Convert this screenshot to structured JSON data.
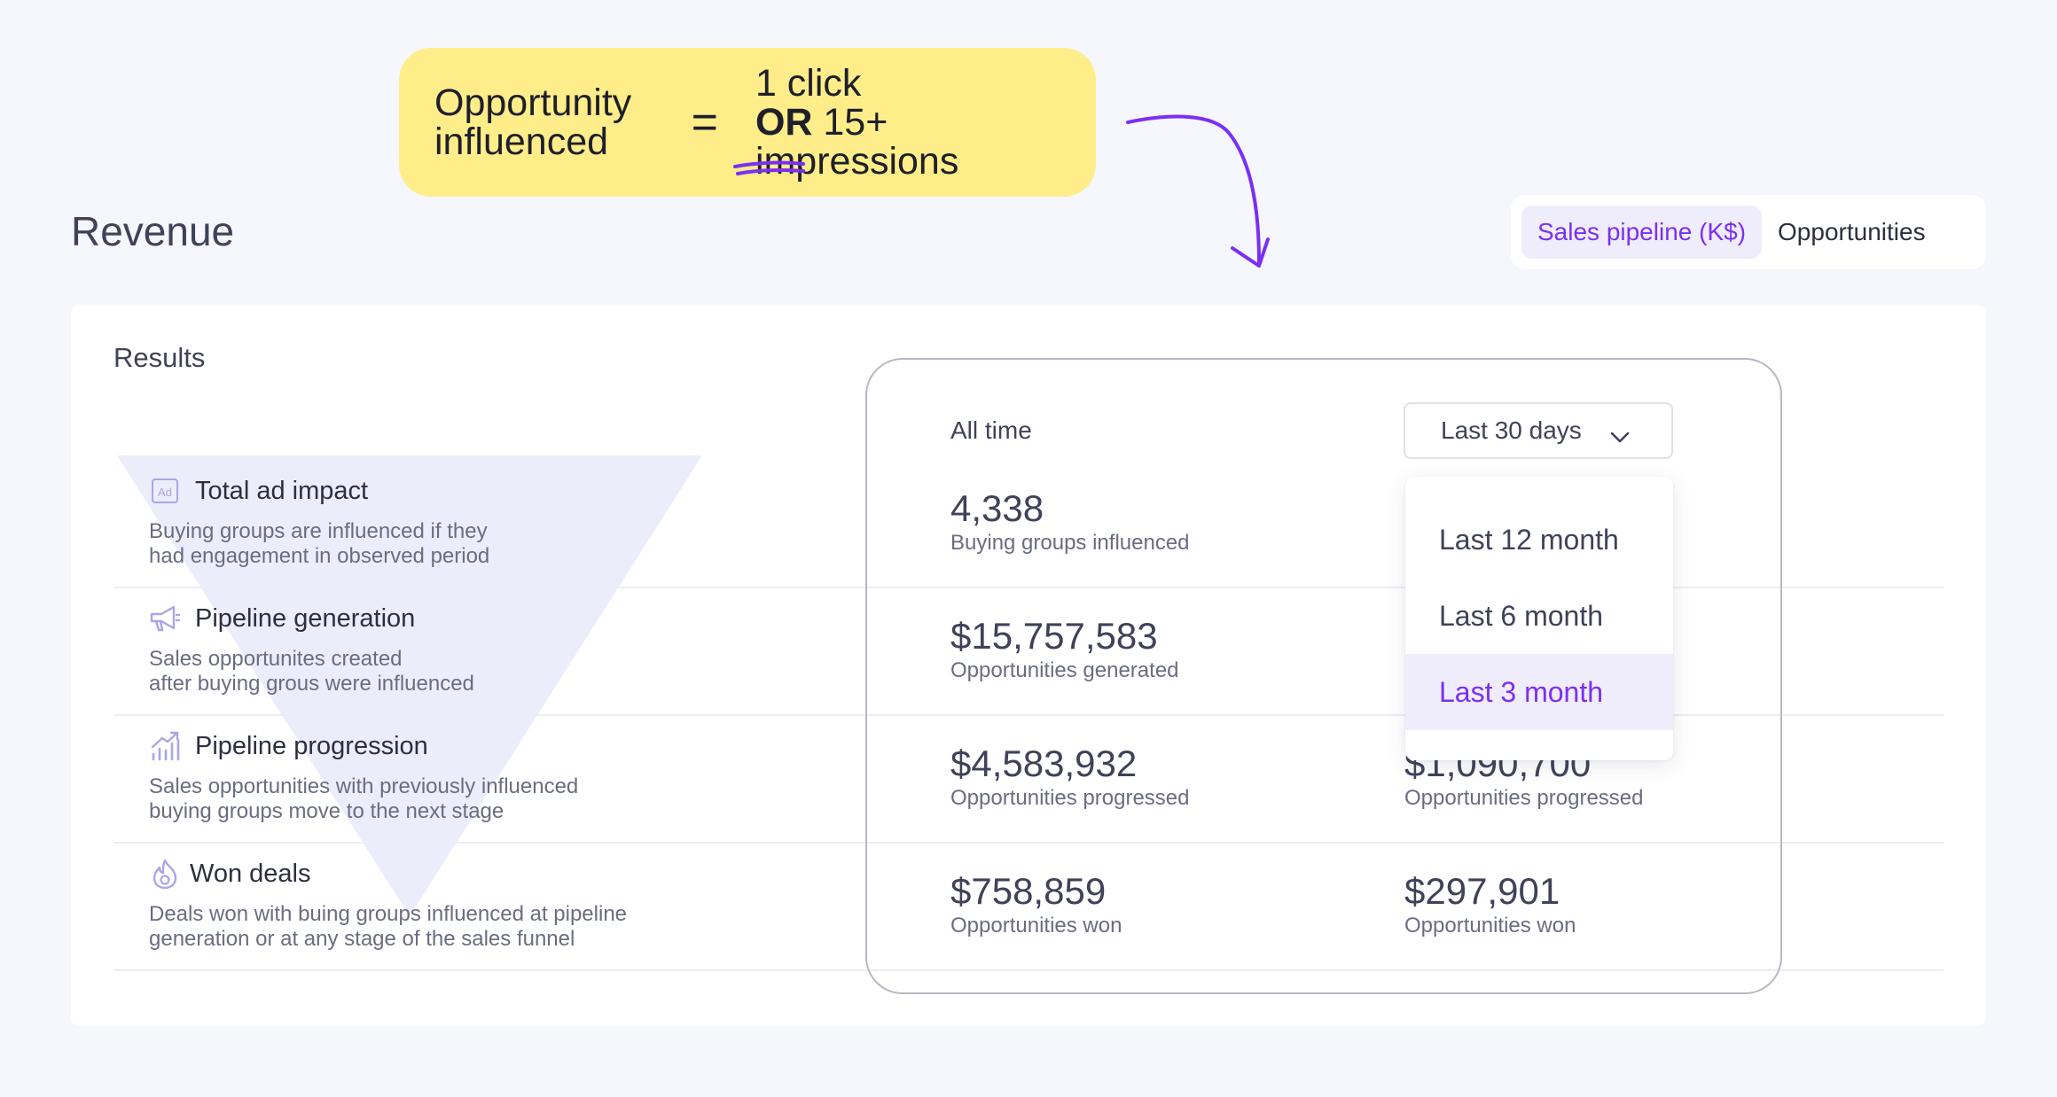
{
  "callout": {
    "lhs_line1": "Opportunity",
    "lhs_line2": "influenced",
    "equals": "=",
    "rhs_line1": "1 click",
    "rhs_or": "OR",
    "rhs_rest": " 15+ impressions"
  },
  "page_title": "Revenue",
  "toggle": {
    "options": [
      "Sales pipeline (K$)",
      "Opportunities"
    ],
    "selected": "Sales pipeline (K$)"
  },
  "results_title": "Results",
  "metrics": [
    {
      "icon": "ad-icon",
      "title": "Total ad impact",
      "desc1": "Buying groups are influenced if they",
      "desc2": "had engagement in observed period"
    },
    {
      "icon": "megaphone-icon",
      "title": "Pipeline generation",
      "desc1": "Sales opportunites created",
      "desc2": "after buying grous were influenced"
    },
    {
      "icon": "growth-chart-icon",
      "title": "Pipeline progression",
      "desc1": "Sales opportunities with previously influenced",
      "desc2": "buying groups move to the next stage"
    },
    {
      "icon": "flame-icon",
      "title": "Won deals",
      "desc1": "Deals won with buing groups influenced at pipeline",
      "desc2": "generation or at any stage of the sales funnel"
    }
  ],
  "columns": {
    "all_time_label": "All time",
    "period_select": "Last 30 days"
  },
  "all_time": [
    {
      "value": "4,338",
      "label": "Buying groups influenced"
    },
    {
      "value": "$15,757,583",
      "label": "Opportunities generated"
    },
    {
      "value": "$4,583,932",
      "label": "Opportunities progressed"
    },
    {
      "value": "$758,859",
      "label": "Opportunities won"
    }
  ],
  "period": [
    {
      "value": "$1,090,700",
      "label": "Opportunities progressed"
    },
    {
      "value": "$297,901",
      "label": "Opportunities won"
    }
  ],
  "dropdown": {
    "options": [
      "Last 12 month",
      "Last 6 month",
      "Last 3 month"
    ],
    "highlighted": "Last 3 month"
  },
  "colors": {
    "accent": "#7b2ff2",
    "callout_bg": "#ffed8a",
    "funnel": "#e9ebfb",
    "page_bg": "#f5f7fd"
  }
}
